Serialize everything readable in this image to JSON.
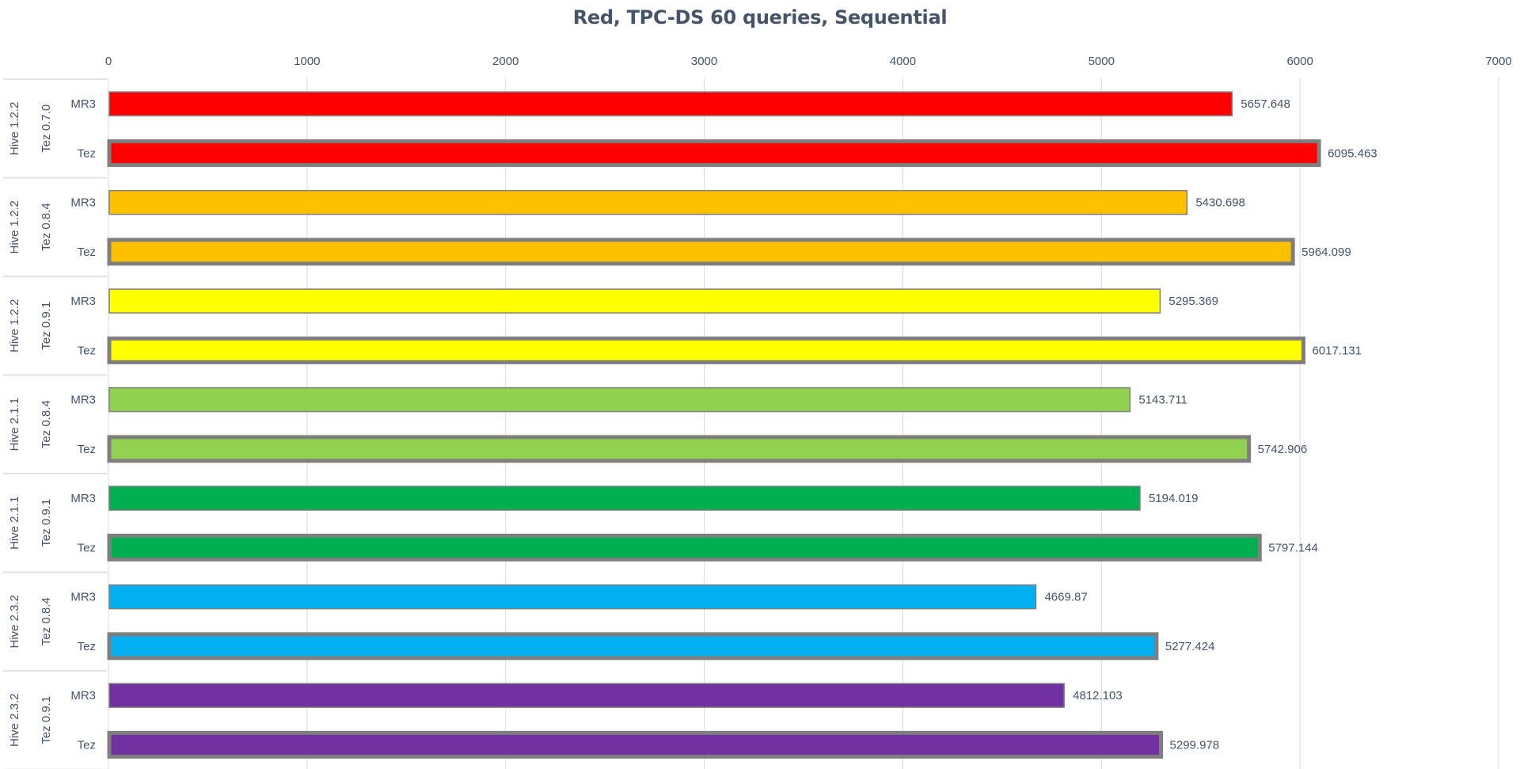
{
  "chart_data": {
    "type": "bar",
    "orientation": "horizontal",
    "title": "Red, TPC-DS 60 queries, Sequential",
    "xlim": [
      0,
      7000
    ],
    "x_ticks": [
      "0",
      "1000",
      "2000",
      "3000",
      "4000",
      "5000",
      "6000",
      "7000"
    ],
    "x_tick_values": [
      0,
      1000,
      2000,
      3000,
      4000,
      5000,
      6000,
      7000
    ],
    "grid": true,
    "groups": [
      {
        "hive": "Hive 1.2.2",
        "tez": "Tez 0.7.0",
        "color": "#ff0000",
        "bars": [
          {
            "label": "MR3",
            "value": 5657.648,
            "text": "5657.648"
          },
          {
            "label": "Tez",
            "value": 6095.463,
            "text": "6095.463"
          }
        ]
      },
      {
        "hive": "Hive 1.2.2",
        "tez": "Tez 0.8.4",
        "color": "#ffc000",
        "bars": [
          {
            "label": "MR3",
            "value": 5430.698,
            "text": "5430.698"
          },
          {
            "label": "Tez",
            "value": 5964.099,
            "text": "5964.099"
          }
        ]
      },
      {
        "hive": "Hive 1.2.2",
        "tez": "Tez 0.9.1",
        "color": "#ffff00",
        "bars": [
          {
            "label": "MR3",
            "value": 5295.369,
            "text": "5295.369"
          },
          {
            "label": "Tez",
            "value": 6017.131,
            "text": "6017.131"
          }
        ]
      },
      {
        "hive": "Hive 2.1.1",
        "tez": "Tez 0.8.4",
        "color": "#92d050",
        "bars": [
          {
            "label": "MR3",
            "value": 5143.711,
            "text": "5143.711"
          },
          {
            "label": "Tez",
            "value": 5742.906,
            "text": "5742.906"
          }
        ]
      },
      {
        "hive": "Hive 2.1.1",
        "tez": "Tez 0.9.1",
        "color": "#00b050",
        "bars": [
          {
            "label": "MR3",
            "value": 5194.019,
            "text": "5194.019"
          },
          {
            "label": "Tez",
            "value": 5797.144,
            "text": "5797.144"
          }
        ]
      },
      {
        "hive": "Hive 2.3.2",
        "tez": "Tez 0.8.4",
        "color": "#00b0f0",
        "bars": [
          {
            "label": "MR3",
            "value": 4669.87,
            "text": "4669.87"
          },
          {
            "label": "Tez",
            "value": 5277.424,
            "text": "5277.424"
          }
        ]
      },
      {
        "hive": "Hive 2.3.2",
        "tez": "Tez 0.9.1",
        "color": "#7030a0",
        "bars": [
          {
            "label": "MR3",
            "value": 4812.103,
            "text": "4812.103"
          },
          {
            "label": "Tez",
            "value": 5299.978,
            "text": "5299.978"
          }
        ]
      }
    ]
  }
}
